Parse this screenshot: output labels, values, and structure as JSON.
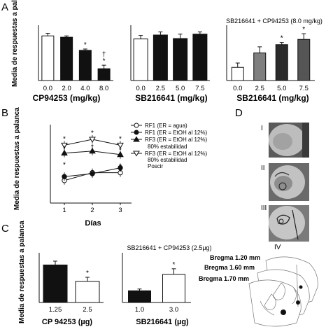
{
  "panels": {
    "A": {
      "letter": "A",
      "ylabel": "Media de respuestas a palanca",
      "subplots": [
        {
          "xlabel": "CP94253 (mg/kg)",
          "header": ""
        },
        {
          "xlabel": "SB216641 (mg/kg)",
          "header": ""
        },
        {
          "xlabel": "SB216641 (mg/kg)",
          "header": "SB216641 + CP94253 (8.0 mg/kg)"
        }
      ]
    },
    "B": {
      "letter": "B",
      "ylabel": "Media de respuestas a palanca",
      "xlabel": "Días",
      "legend": [
        "RF1 (ER = agua)",
        "RF1 (ER = EtOH al 12%)",
        "RF3 (ER = EtOH al 12%)",
        "80% estabilidad",
        "RF3 (ER = EtOH al 12%)",
        "80% estabilidad",
        "Poscir"
      ]
    },
    "C": {
      "letter": "C",
      "ylabel": "Media de respuestas a palanca",
      "header": "SB216641 + CP94253 (2.5µg)",
      "subplots": [
        {
          "xlabel": "CP 94253 (µg)"
        },
        {
          "xlabel": "SB216641 (µg)"
        }
      ]
    },
    "D": {
      "letter": "D",
      "roman": [
        "I",
        "II",
        "III",
        "IV"
      ],
      "bregma": [
        "Bregma 1.20 mm",
        "Bregma 1.60 mm",
        "Bregma 1.70 mm"
      ]
    }
  },
  "chart_data": [
    {
      "id": "A1",
      "type": "bar",
      "categories": [
        "0.0",
        "2.0",
        "4.0",
        "8.0"
      ],
      "values": [
        510,
        495,
        345,
        135
      ],
      "errors": [
        30,
        15,
        15,
        40
      ],
      "fills": [
        "#ffffff",
        "#111111",
        "#111111",
        "#111111"
      ],
      "annotations": [
        "",
        "",
        "*",
        "†\n*"
      ],
      "ylim": [
        0,
        600
      ],
      "yticks": [],
      "xlabel": "CP94253 (mg/kg)",
      "ylabel": "Media de respuestas a palanca"
    },
    {
      "id": "A2",
      "type": "bar",
      "categories": [
        "0.0",
        "2.5",
        "5.0",
        "7.5"
      ],
      "values": [
        475,
        520,
        480,
        530
      ],
      "errors": [
        40,
        35,
        50,
        25
      ],
      "fills": [
        "#ffffff",
        "#111111",
        "#111111",
        "#111111"
      ],
      "annotations": [
        "",
        "",
        "",
        ""
      ],
      "ylim": [
        0,
        600
      ],
      "yticks": [],
      "xlabel": "SB216641 (mg/kg)"
    },
    {
      "id": "A3",
      "type": "bar",
      "categories": [
        "0.0",
        "2.5",
        "5.0",
        "7.5"
      ],
      "values": [
        150,
        315,
        410,
        470
      ],
      "errors": [
        50,
        70,
        25,
        65
      ],
      "fills": [
        "#ffffff",
        "#7f7f7f",
        "#2a2a2a",
        "#555555"
      ],
      "annotations": [
        "",
        "",
        "*",
        "*"
      ],
      "ylim": [
        0,
        600
      ],
      "yticks": [],
      "title": "SB216641 + CP94253 (8.0 mg/kg)",
      "xlabel": "SB216641 (mg/kg)"
    },
    {
      "id": "B",
      "type": "line",
      "x": [
        1,
        2,
        3
      ],
      "xticks": [
        "1",
        "2",
        "3"
      ],
      "ylim": [
        0,
        800
      ],
      "yticks": [],
      "xlabel": "Días",
      "ylabel": "Media de respuestas a palanca",
      "series": [
        {
          "name": "RF1 (ER = agua)",
          "values": [
            230,
            310,
            310
          ],
          "marker": "circle-open"
        },
        {
          "name": "RF1 (ER = EtOH al 12%)",
          "values": [
            270,
            300,
            360
          ],
          "marker": "circle-filled"
        },
        {
          "name": "RF3 (ER = EtOH al 12%) 80% estabilidad",
          "values": [
            510,
            530,
            495
          ],
          "marker": "triangle-filled"
        },
        {
          "name": "RF3 (ER = EtOH al 12%) 80% estabilidad Poscir",
          "values": [
            590,
            650,
            590
          ],
          "marker": "triangle-open"
        }
      ],
      "annotations": [
        {
          "x": 1,
          "text": "*"
        },
        {
          "x": 1,
          "text": "*"
        },
        {
          "x": 1,
          "text": "*"
        },
        {
          "x": 2,
          "text": "*"
        },
        {
          "x": 2,
          "text": "*"
        },
        {
          "x": 3,
          "text": "*"
        },
        {
          "x": 3,
          "text": "*"
        },
        {
          "x": 3,
          "text": "*"
        }
      ],
      "legend_position": "top-right"
    },
    {
      "id": "C1",
      "type": "bar",
      "categories": [
        "1.25",
        "2.5"
      ],
      "values": [
        640,
        360
      ],
      "errors": [
        65,
        70
      ],
      "fills": [
        "#111111",
        "#ffffff"
      ],
      "annotations": [
        "",
        "*"
      ],
      "ylim": [
        0,
        800
      ],
      "yticks": [],
      "title": "SB216641 + CP94253 (2.5µg)",
      "xlabel": "CP 94253 (µg)",
      "ylabel": "Media de respuestas a palanca"
    },
    {
      "id": "C2",
      "type": "bar",
      "categories": [
        "1.0",
        "3.0"
      ],
      "values": [
        200,
        480
      ],
      "errors": [
        30,
        95
      ],
      "fills": [
        "#111111",
        "#ffffff"
      ],
      "annotations": [
        "",
        "*"
      ],
      "ylim": [
        0,
        800
      ],
      "yticks": [],
      "xlabel": "SB216641 (µg)"
    }
  ]
}
